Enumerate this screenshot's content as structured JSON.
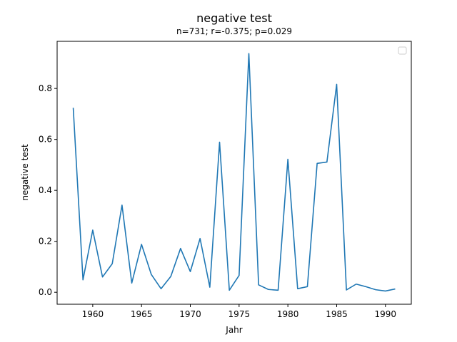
{
  "chart_data": {
    "type": "line",
    "title": "negative test",
    "subtitle": "n=731; r=-0.375; p=0.029",
    "xlabel": "Jahr",
    "ylabel": "negative test",
    "xlim": [
      1956.35,
      1992.65
    ],
    "ylim": [
      -0.047,
      0.985
    ],
    "xticks": [
      1960,
      1965,
      1970,
      1975,
      1980,
      1985,
      1990
    ],
    "yticks": [
      0.0,
      0.2,
      0.4,
      0.6,
      0.8
    ],
    "ytick_labels": [
      "0.0",
      "0.2",
      "0.4",
      "0.6",
      "0.8"
    ],
    "grid": false,
    "legend": {
      "placement": "top-right",
      "entries": []
    },
    "series": [
      {
        "color": "#1f77b4",
        "x": [
          1958,
          1959,
          1960,
          1961,
          1962,
          1963,
          1964,
          1965,
          1966,
          1967,
          1968,
          1969,
          1970,
          1971,
          1972,
          1973,
          1974,
          1975,
          1976,
          1977,
          1978,
          1979,
          1980,
          1981,
          1982,
          1983,
          1984,
          1985,
          1986,
          1987,
          1988,
          1989,
          1990,
          1991
        ],
        "values": [
          0.724,
          0.049,
          0.244,
          0.06,
          0.112,
          0.342,
          0.036,
          0.188,
          0.07,
          0.014,
          0.062,
          0.172,
          0.081,
          0.211,
          0.02,
          0.589,
          0.008,
          0.066,
          0.937,
          0.029,
          0.011,
          0.008,
          0.522,
          0.014,
          0.022,
          0.506,
          0.511,
          0.816,
          0.009,
          0.032,
          0.022,
          0.01,
          0.005,
          0.013
        ]
      }
    ]
  }
}
